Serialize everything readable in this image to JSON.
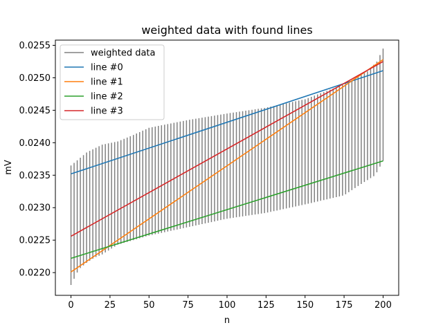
{
  "chart_data": {
    "type": "line",
    "title": "weighted data with found lines",
    "xlabel": "n",
    "ylabel": "mV",
    "xlim": [
      -10,
      210
    ],
    "ylim": [
      0.02165,
      0.02558
    ],
    "xticks": [
      0,
      25,
      50,
      75,
      100,
      125,
      150,
      175,
      200
    ],
    "yticks": [
      0.022,
      0.0225,
      0.023,
      0.0235,
      0.024,
      0.0245,
      0.025,
      0.0255
    ],
    "ytick_labels": [
      "0.0220",
      "0.0225",
      "0.0230",
      "0.0235",
      "0.0240",
      "0.0245",
      "0.0250",
      "0.0255"
    ],
    "grid": false,
    "legend_position": "top-left",
    "weighted_data": {
      "name": "weighted data",
      "color": "#808080",
      "step": 2,
      "x_range": [
        0,
        200
      ],
      "upper_anchors": [
        [
          0,
          0.02365
        ],
        [
          10,
          0.02385
        ],
        [
          20,
          0.02397
        ],
        [
          30,
          0.02402
        ],
        [
          40,
          0.02412
        ],
        [
          50,
          0.02423
        ],
        [
          75,
          0.02435
        ],
        [
          100,
          0.02445
        ],
        [
          125,
          0.02454
        ],
        [
          150,
          0.02467
        ],
        [
          175,
          0.0249
        ],
        [
          190,
          0.0251
        ],
        [
          196,
          0.02525
        ],
        [
          200,
          0.02545
        ]
      ],
      "lower_anchors": [
        [
          0,
          0.02181
        ],
        [
          5,
          0.02205
        ],
        [
          10,
          0.02215
        ],
        [
          15,
          0.02223
        ],
        [
          20,
          0.02228
        ],
        [
          30,
          0.02243
        ],
        [
          50,
          0.02257
        ],
        [
          75,
          0.0227
        ],
        [
          100,
          0.02283
        ],
        [
          125,
          0.02292
        ],
        [
          150,
          0.02305
        ],
        [
          175,
          0.02319
        ],
        [
          185,
          0.02335
        ],
        [
          195,
          0.0235
        ],
        [
          200,
          0.02372
        ]
      ]
    },
    "series": [
      {
        "name": "line #0",
        "color": "#1f77b4",
        "x": [
          0,
          200
        ],
        "y": [
          0.02352,
          0.02511
        ]
      },
      {
        "name": "line #1",
        "color": "#ff7f0e",
        "x": [
          0,
          200
        ],
        "y": [
          0.02201,
          0.02528
        ]
      },
      {
        "name": "line #2",
        "color": "#2ca02c",
        "x": [
          0,
          200
        ],
        "y": [
          0.02222,
          0.02372
        ]
      },
      {
        "name": "line #3",
        "color": "#d62728",
        "x": [
          0,
          200
        ],
        "y": [
          0.02256,
          0.02525
        ]
      }
    ]
  }
}
